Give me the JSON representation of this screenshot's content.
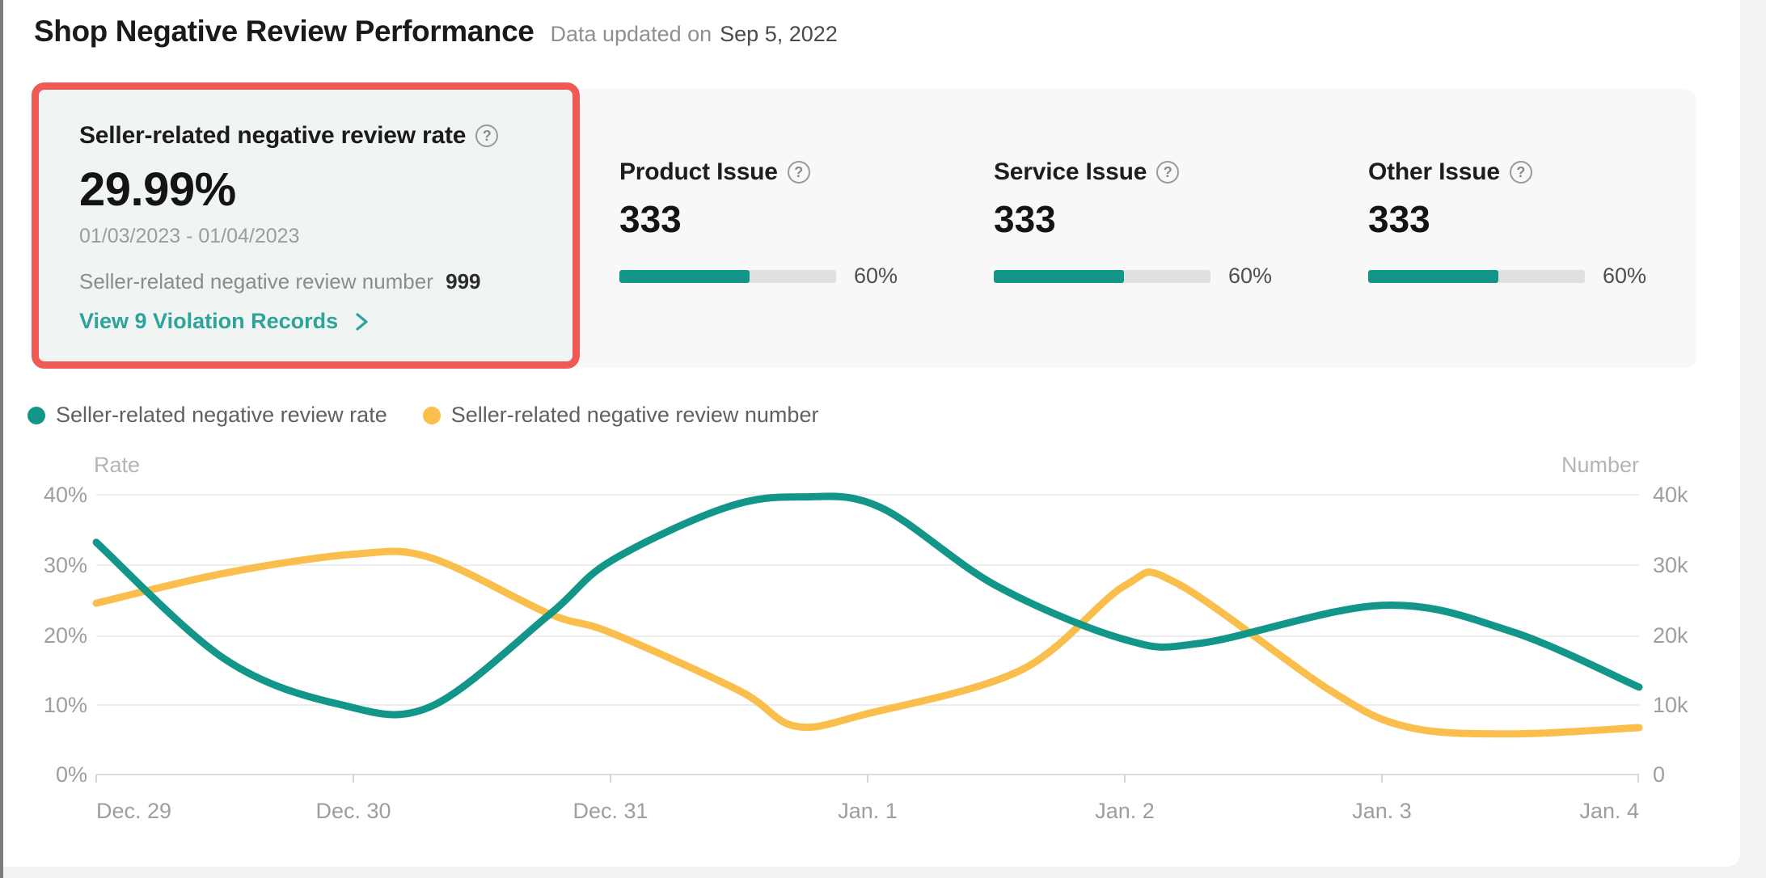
{
  "colors": {
    "teal": "#12968A",
    "yellow": "#F9BE4B",
    "highlight_red": "#EF5B54",
    "link_teal": "#2EA29B"
  },
  "header": {
    "title": "Shop Negative Review Performance",
    "updated_label": "Data updated on",
    "updated_date": "Sep 5, 2022"
  },
  "summary_card": {
    "title": "Seller-related negative review rate",
    "help_glyph": "?",
    "value": "29.99%",
    "date_range": "01/03/2023 - 01/04/2023",
    "number_label": "Seller-related negative review number",
    "number_value": "999",
    "link_label": "View 9 Violation Records"
  },
  "issue_cards": [
    {
      "label": "Product Issue",
      "help_glyph": "?",
      "count": "333",
      "percent": 60,
      "percent_label": "60%"
    },
    {
      "label": "Service Issue",
      "help_glyph": "?",
      "count": "333",
      "percent": 60,
      "percent_label": "60%"
    },
    {
      "label": "Other Issue",
      "help_glyph": "?",
      "count": "333",
      "percent": 60,
      "percent_label": "60%"
    }
  ],
  "legend": [
    {
      "label": "Seller-related negative review rate",
      "color": "#12968A"
    },
    {
      "label": "Seller-related negative review number",
      "color": "#F9BE4B"
    }
  ],
  "chart_data": {
    "type": "line",
    "smooth": true,
    "grid": true,
    "legend_position": "top-left",
    "x_labels": [
      "Dec. 29",
      "Dec. 30",
      "Dec. 31",
      "Jan. 1",
      "Jan. 2",
      "Jan. 3",
      "Jan. 4"
    ],
    "left_axis": {
      "name": "Rate",
      "unit": "%",
      "min": 0,
      "max": 40,
      "ticks": [
        "40%",
        "30%",
        "20%",
        "10%",
        "0%"
      ]
    },
    "right_axis": {
      "name": "Number",
      "unit": "",
      "min": 0,
      "max": 40000,
      "ticks": [
        "40k",
        "30k",
        "20k",
        "10k",
        "0"
      ]
    },
    "series": [
      {
        "name": "Seller-related negative review rate",
        "axis": "left",
        "unit": "%",
        "color": "#12968A",
        "values_at_labels": [
          33.2,
          9.9,
          30.5,
          38.3,
          19.3,
          24.2,
          12.5
        ],
        "curve_samples": [
          [
            0,
            33.2
          ],
          [
            0.5,
            16.5
          ],
          [
            0.95,
            10.0
          ],
          [
            1.3,
            9.7
          ],
          [
            1.76,
            22.8
          ],
          [
            2.0,
            30.5
          ],
          [
            2.45,
            38.2
          ],
          [
            2.75,
            39.7
          ],
          [
            3.05,
            38.2
          ],
          [
            3.5,
            27.0
          ],
          [
            4.0,
            19.3
          ],
          [
            4.3,
            18.8
          ],
          [
            5.0,
            24.2
          ],
          [
            5.5,
            20.5
          ],
          [
            6.0,
            12.5
          ]
        ]
      },
      {
        "name": "Seller-related negative review number",
        "axis": "right",
        "unit": "k",
        "color": "#F9BE4B",
        "values_at_labels": [
          24500,
          31500,
          20300,
          8700,
          27000,
          8000,
          6700
        ],
        "curve_samples": [
          [
            0,
            24.5
          ],
          [
            0.5,
            28.8
          ],
          [
            1.0,
            31.5
          ],
          [
            1.3,
            31.0
          ],
          [
            1.76,
            23.0
          ],
          [
            2.0,
            20.3
          ],
          [
            2.5,
            12.0
          ],
          [
            2.72,
            6.9
          ],
          [
            3.0,
            8.7
          ],
          [
            3.6,
            15.0
          ],
          [
            4.0,
            27.0
          ],
          [
            4.2,
            27.4
          ],
          [
            4.8,
            12.0
          ],
          [
            5.1,
            6.8
          ],
          [
            5.5,
            5.8
          ],
          [
            6.0,
            6.7
          ]
        ]
      }
    ]
  }
}
